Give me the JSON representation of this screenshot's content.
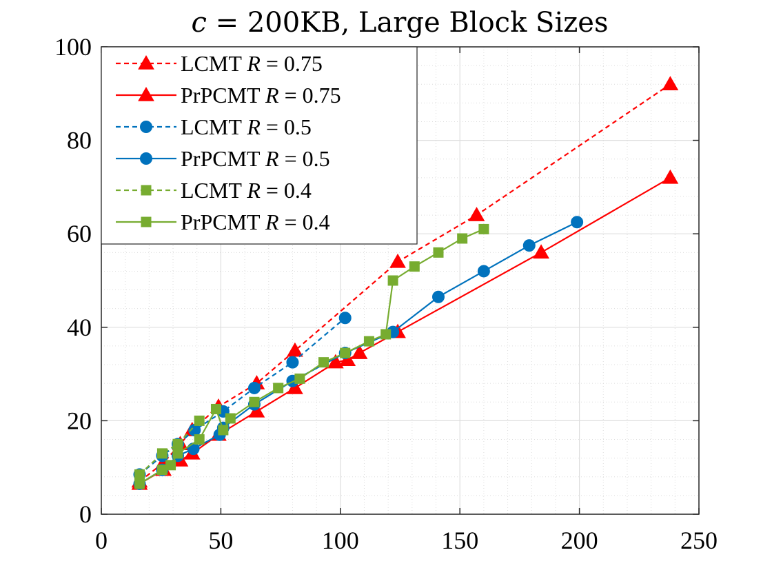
{
  "chart_data": {
    "type": "line",
    "title": "c = 200KB, Large Block Sizes",
    "title_parts": {
      "var": "c",
      "rest": " = 200KB, Large Block Sizes"
    },
    "xlabel": "",
    "ylabel": "",
    "xlim": [
      0,
      250
    ],
    "ylim": [
      0,
      100
    ],
    "x_ticks": [
      0,
      50,
      100,
      150,
      200,
      250
    ],
    "y_ticks": [
      0,
      20,
      40,
      60,
      80,
      100
    ],
    "x_tick_labels": [
      "0",
      "50",
      "100",
      "150",
      "200",
      "250"
    ],
    "y_tick_labels": [
      "0",
      "20",
      "40",
      "60",
      "80",
      "100"
    ],
    "grid": true,
    "minor_grid": true,
    "legend_position": "top-left",
    "series": [
      {
        "name": "LCMT R = 0.75",
        "label_prefix": "LCMT",
        "label_var": "R",
        "label_rest": " = 0.75",
        "color": "#ff0000",
        "line": "dashed",
        "marker": "triangle",
        "x": [
          16,
          26,
          33,
          38,
          49,
          65,
          81,
          124,
          157,
          238
        ],
        "y": [
          7,
          11,
          15,
          18,
          23,
          28,
          35,
          54,
          64,
          92
        ]
      },
      {
        "name": "PrPCMT R = 0.75",
        "label_prefix": "PrPCMT",
        "label_var": "R",
        "label_rest": " = 0.75",
        "color": "#ff0000",
        "line": "solid",
        "marker": "triangle",
        "x": [
          16,
          26,
          33,
          38,
          49,
          65,
          81,
          98,
          103,
          108,
          124,
          184,
          238
        ],
        "y": [
          6.5,
          9.5,
          11.5,
          13,
          17,
          22,
          27,
          32.5,
          33,
          34.5,
          39,
          56,
          72
        ]
      },
      {
        "name": "LCMT R = 0.5",
        "label_prefix": "LCMT",
        "label_var": "R",
        "label_rest": " = 0.5",
        "color": "#0072bd",
        "line": "dashed",
        "marker": "circle",
        "x": [
          16,
          25.5,
          32,
          39,
          51,
          64,
          80,
          102
        ],
        "y": [
          8.5,
          12.5,
          15,
          18,
          22,
          27,
          32.5,
          42
        ]
      },
      {
        "name": "PrPCMT R = 0.5",
        "label_prefix": "PrPCMT",
        "label_var": "R",
        "label_rest": " = 0.5",
        "color": "#0072bd",
        "line": "solid",
        "marker": "circle",
        "x": [
          16,
          25.5,
          32,
          38.5,
          49.5,
          51,
          64,
          80,
          102,
          122,
          141,
          160,
          179,
          199
        ],
        "y": [
          6.5,
          9.5,
          12.5,
          14,
          17,
          18.5,
          23.5,
          28.5,
          34.5,
          39,
          46.5,
          52,
          57.5,
          62.5
        ]
      },
      {
        "name": "LCMT R = 0.4",
        "label_prefix": "LCMT",
        "label_var": "R",
        "label_rest": " = 0.4",
        "color": "#77ac30",
        "line": "dashed",
        "marker": "square",
        "x": [
          16,
          25.5,
          32,
          41
        ],
        "y": [
          8.5,
          13,
          15,
          20
        ]
      },
      {
        "name": "PrPCMT R = 0.4",
        "label_prefix": "PrPCMT",
        "label_var": "R",
        "label_rest": " = 0.4",
        "color": "#77ac30",
        "line": "solid",
        "marker": "square",
        "x": [
          16,
          25.5,
          29,
          32,
          41,
          48,
          51,
          54,
          64,
          74,
          83,
          93,
          102,
          112,
          119,
          122,
          131,
          141,
          151,
          160
        ],
        "y": [
          6.5,
          9.5,
          10.5,
          13,
          16,
          22.5,
          18,
          20.5,
          24,
          27,
          29,
          32.5,
          34.5,
          37,
          38.5,
          50,
          53,
          56,
          59,
          61
        ]
      }
    ]
  }
}
